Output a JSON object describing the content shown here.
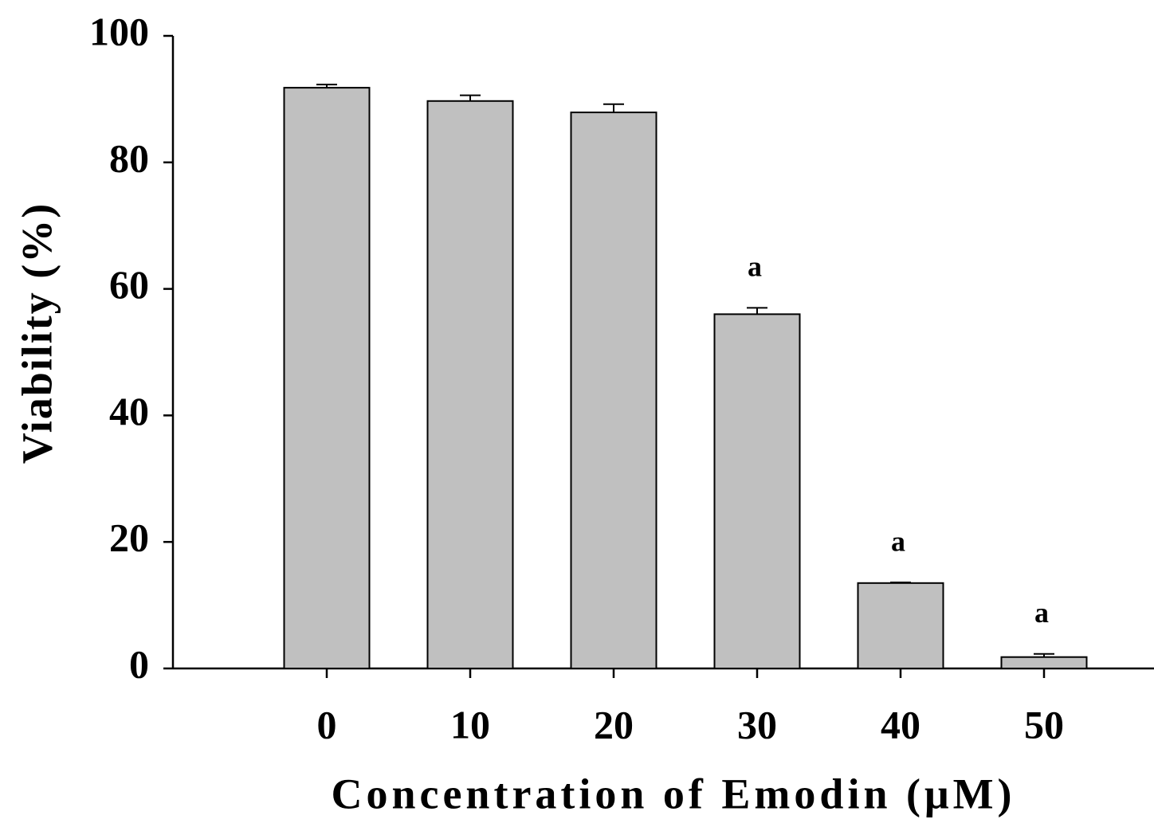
{
  "chart_data": {
    "type": "bar",
    "x_label": "Concentration of Emodin (μM)",
    "y_label": "Viability (%)",
    "categories": [
      "0",
      "10",
      "20",
      "30",
      "40",
      "50"
    ],
    "values": [
      91.8,
      89.7,
      87.9,
      56.0,
      13.5,
      1.8
    ],
    "errors": [
      0.5,
      0.9,
      1.3,
      1.0,
      0.1,
      0.5
    ],
    "annotations": [
      null,
      null,
      null,
      "a",
      "a",
      "a"
    ],
    "color": "#c0c0c0",
    "ylim": [
      0,
      100
    ],
    "yticks": [
      0,
      20,
      40,
      60,
      80,
      100
    ]
  }
}
